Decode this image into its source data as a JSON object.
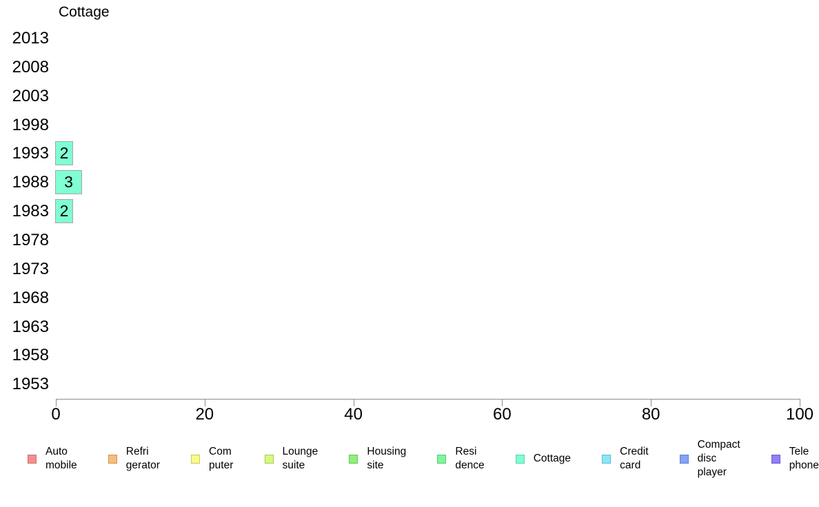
{
  "chart_data": {
    "type": "bar",
    "orientation": "horizontal",
    "title": "Cottage",
    "xlabel": "",
    "ylabel": "",
    "categories": [
      "2013",
      "2008",
      "2003",
      "1998",
      "1993",
      "1988",
      "1983",
      "1978",
      "1973",
      "1968",
      "1963",
      "1958",
      "1953"
    ],
    "values": [
      0,
      0,
      0,
      0,
      2,
      3,
      2,
      0,
      0,
      0,
      0,
      0,
      0
    ],
    "bar_value_labels": [
      "",
      "",
      "",
      "",
      "2",
      "3",
      "2",
      "",
      "",
      "",
      "",
      "",
      ""
    ],
    "series_name": "Cottage",
    "bar_fill_color": "#80ffd4",
    "bar_border_color": "#a6a6a6",
    "axis_color": "#8c8c8c",
    "xlim": [
      0,
      100
    ],
    "x_ticks": [
      "0",
      "20",
      "40",
      "60",
      "80",
      "100"
    ],
    "grid": false,
    "legend_position": "bottom",
    "legend": [
      {
        "label": "Auto\nmobile",
        "fill": "#f68e8e",
        "border": "#c87272"
      },
      {
        "label": "Refri\ngerator",
        "fill": "#f8bd7e",
        "border": "#cf9551"
      },
      {
        "label": "Com\nputer",
        "fill": "#fafa8c",
        "border": "#c9c95c"
      },
      {
        "label": "Lounge\nsuite",
        "fill": "#d7f97e",
        "border": "#a9cc51"
      },
      {
        "label": "Housing\nsite",
        "fill": "#90f07d",
        "border": "#63c553"
      },
      {
        "label": "Resi\ndence",
        "fill": "#80f59b",
        "border": "#54ca71"
      },
      {
        "label": "Cottage",
        "fill": "#80ffd4",
        "border": "#55d3a8"
      },
      {
        "label": "Credit\ncard",
        "fill": "#8be7f8",
        "border": "#5cbcd3"
      },
      {
        "label": "Compact\ndisc\nplayer",
        "fill": "#85a4f5",
        "border": "#5c7ed5"
      },
      {
        "label": "Tele\nphone",
        "fill": "#9080f5",
        "border": "#6b57d5"
      }
    ]
  }
}
